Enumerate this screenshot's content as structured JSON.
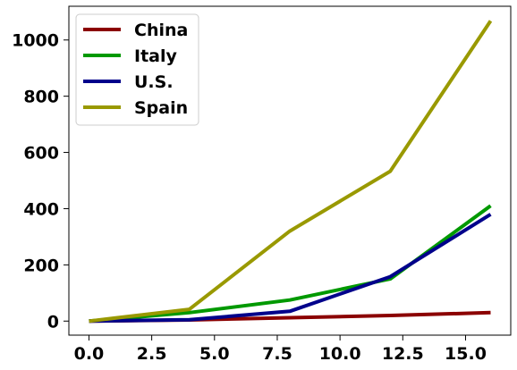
{
  "chart_data": {
    "type": "line",
    "title": "",
    "xlabel": "",
    "ylabel": "",
    "x": [
      0,
      4,
      8,
      12,
      16
    ],
    "xlim": [
      -0.8,
      16.8
    ],
    "ylim": [
      -50,
      1120
    ],
    "xticks": [
      0.0,
      2.5,
      5.0,
      7.5,
      10.0,
      12.5,
      15.0
    ],
    "xtick_labels": [
      "0.0",
      "2.5",
      "5.0",
      "7.5",
      "10.0",
      "12.5",
      "15.0"
    ],
    "yticks": [
      0,
      200,
      400,
      600,
      800,
      1000
    ],
    "ytick_labels": [
      "0",
      "200",
      "400",
      "600",
      "800",
      "1000"
    ],
    "grid": false,
    "legend_position": "top-left",
    "series": [
      {
        "name": "China",
        "color": "#8b0000",
        "values": [
          0,
          4,
          12,
          20,
          30
        ]
      },
      {
        "name": "Italy",
        "color": "#009900",
        "values": [
          0,
          30,
          75,
          150,
          410
        ]
      },
      {
        "name": "U.S.",
        "color": "#00008b",
        "values": [
          0,
          5,
          35,
          158,
          380
        ]
      },
      {
        "name": "Spain",
        "color": "#999900",
        "values": [
          0,
          42,
          320,
          533,
          1068
        ]
      }
    ]
  }
}
